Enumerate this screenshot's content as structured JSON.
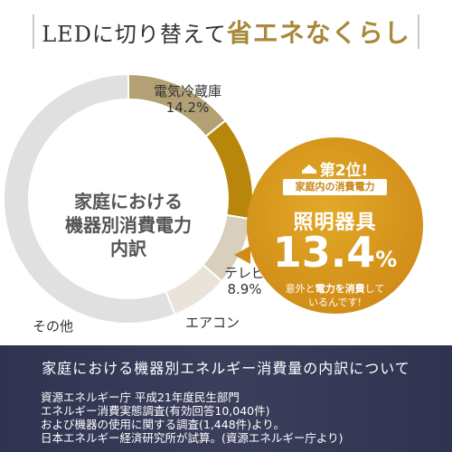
{
  "header": {
    "title_plain": "LEDに切り替えて",
    "title_em": "省エネなくらし"
  },
  "center_label": [
    "家庭における",
    "機器別消費電力",
    "内訳"
  ],
  "chart_data": {
    "type": "pie",
    "categories": [
      "電気冷蔵庫",
      "照明器具",
      "テレビ",
      "エアコン",
      "その他"
    ],
    "values": [
      14.2,
      13.4,
      8.9,
      7.4,
      56.1
    ],
    "colors": [
      "#b3a074",
      "#b8860b",
      "#d9cfbd",
      "#e9e3d9",
      "#e0e0e0"
    ],
    "labels": [
      {
        "name": "電気冷蔵庫",
        "value": "14.2%"
      },
      {
        "name": "テレビ",
        "value": "8.9%"
      },
      {
        "name": "エアコン",
        "value": ""
      },
      {
        "name": "その他",
        "value": ""
      }
    ]
  },
  "callout": {
    "rank": "第2位!",
    "subtitle": "家庭内の消費電力",
    "item": "照明器具",
    "value": "13.4",
    "unit": "%",
    "note_line1_pre": "意外と",
    "note_line1_em": "電力を消費",
    "note_line1_post": "して",
    "note_line2": "いるんです!"
  },
  "footer": {
    "title": "家庭における機器別エネルギー消費量の内訳について",
    "sources": [
      "資源エネルギー庁 平成21年度民生部門",
      "エネルギー消費実態調査(有効回答10,040件)",
      "および機器の使用に関する調査(1,448件)より。",
      "日本エネルギー経済研究所が試算。(資源エネルギー庁より)"
    ]
  }
}
